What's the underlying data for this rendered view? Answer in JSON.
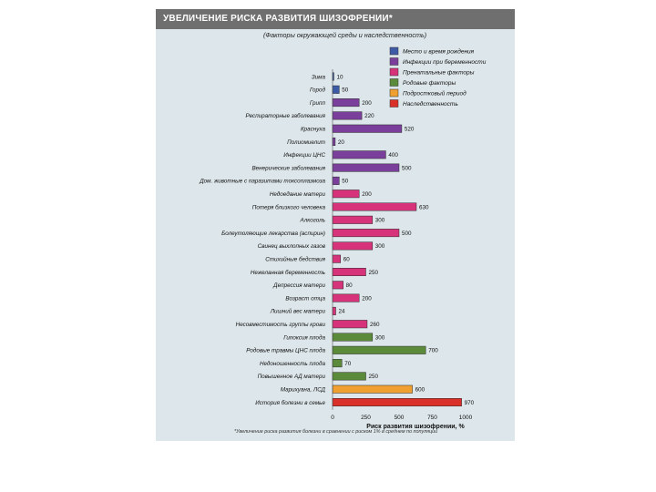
{
  "chart_data": {
    "type": "bar",
    "orientation": "horizontal",
    "title": "УВЕЛИЧЕНИЕ РИСКА РАЗВИТИЯ ШИЗОФРЕНИИ*",
    "subtitle": "(Факторы окружающей среды и наследственность)",
    "xlabel": "Риск развития шизофрении, %",
    "xlim": [
      0,
      1000
    ],
    "xticks": [
      "0",
      "250",
      "500",
      "750",
      "1000"
    ],
    "footnote": "*Увеличение риска развития болезни в сравнении с риском 1% в среднем по популяции",
    "legend_position": "top-right",
    "groups": [
      {
        "name": "Место и время рождения",
        "color": "#3c5aa6"
      },
      {
        "name": "Инфекции при беременности",
        "color": "#7a3f9a"
      },
      {
        "name": "Пренатальные факторы",
        "color": "#d6337a"
      },
      {
        "name": "Родовые факторы",
        "color": "#5a8a3a"
      },
      {
        "name": "Подростковый период",
        "color": "#f0a030"
      },
      {
        "name": "Наследственность",
        "color": "#d9302a"
      }
    ],
    "bars": [
      {
        "label": "Зима",
        "value": 10,
        "group": 0
      },
      {
        "label": "Город",
        "value": 50,
        "group": 0
      },
      {
        "label": "Грипп",
        "value": 200,
        "group": 1
      },
      {
        "label": "Респираторные заболевания",
        "value": 220,
        "group": 1
      },
      {
        "label": "Краснуха",
        "value": 520,
        "group": 1
      },
      {
        "label": "Полиомиелит",
        "value": 20,
        "group": 1
      },
      {
        "label": "Инфекции ЦНС",
        "value": 400,
        "group": 1
      },
      {
        "label": "Венерические заболевания",
        "value": 500,
        "group": 1
      },
      {
        "label": "Дом. животные с паразитами токсоплазмоза",
        "value": 50,
        "group": 1
      },
      {
        "label": "Недоедание матери",
        "value": 200,
        "group": 2
      },
      {
        "label": "Потеря близкого человека",
        "value": 630,
        "group": 2
      },
      {
        "label": "Алкоголь",
        "value": 300,
        "group": 2
      },
      {
        "label": "Болеутоляющие лекарства (аспирин)",
        "value": 500,
        "group": 2
      },
      {
        "label": "Свинец выхлопных газов",
        "value": 300,
        "group": 2
      },
      {
        "label": "Стихийные бедствия",
        "value": 60,
        "group": 2
      },
      {
        "label": "Нежеланная беременность",
        "value": 250,
        "group": 2
      },
      {
        "label": "Депрессия матери",
        "value": 80,
        "group": 2
      },
      {
        "label": "Возраст отца",
        "value": 200,
        "group": 2
      },
      {
        "label": "Лишний вес матери",
        "value": 24,
        "group": 2
      },
      {
        "label": "Несовместимость группы крови",
        "value": 260,
        "group": 2
      },
      {
        "label": "Гипоксия плода",
        "value": 300,
        "group": 3
      },
      {
        "label": "Родовые травмы ЦНС плода",
        "value": 700,
        "group": 3
      },
      {
        "label": "Недоношенность плода",
        "value": 70,
        "group": 3
      },
      {
        "label": "Повышенное АД матери",
        "value": 250,
        "group": 3
      },
      {
        "label": "Марихуана, ЛСД",
        "value": 600,
        "group": 4
      },
      {
        "label": "История болезни в семье",
        "value": 970,
        "group": 5
      }
    ]
  }
}
